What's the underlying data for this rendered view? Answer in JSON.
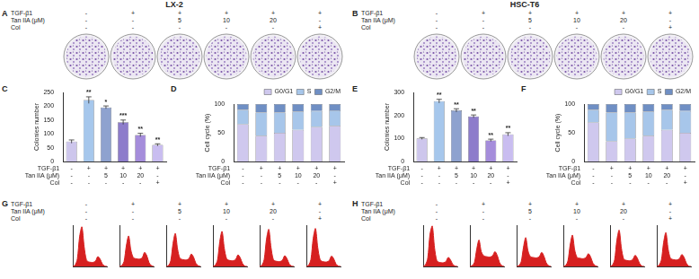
{
  "headers": [
    "LX-2",
    "HSC-T6"
  ],
  "image_panels": [
    "A",
    "B"
  ],
  "conditions": {
    "rows": [
      "TGF-β1",
      "Tan IIA (μM)",
      "Col"
    ],
    "columns": [
      [
        "-",
        "-",
        "-"
      ],
      [
        "+",
        "-",
        "-"
      ],
      [
        "+",
        "5",
        "-"
      ],
      [
        "+",
        "10",
        "-"
      ],
      [
        "+",
        "20",
        "-"
      ],
      [
        "+",
        "-",
        "+"
      ]
    ]
  },
  "chart_data": [
    {
      "panel": "C",
      "type": "bar",
      "y_label": "Colonies number",
      "values": [
        72,
        222,
        196,
        142,
        96,
        60
      ],
      "errors": [
        6,
        12,
        5,
        8,
        6,
        4
      ],
      "significance": [
        null,
        "**",
        "*",
        "***",
        "**",
        "**"
      ],
      "colors": [
        "#cdc6ec",
        "#a6c7ec",
        "#8ea2cf",
        "#8d7ccb",
        "#a58ddb",
        "#c9bdf0"
      ],
      "ylim": [
        0,
        250
      ],
      "yticks": [
        0,
        50,
        100,
        150,
        200,
        250
      ],
      "grid": false
    },
    {
      "panel": "D",
      "type": "bar",
      "stacked": true,
      "y_label": "Cell cycle (%)",
      "series": [
        {
          "name": "G0/G1",
          "color": "#cfc8ee",
          "values": [
            65,
            45,
            50,
            55,
            60,
            62
          ]
        },
        {
          "name": "S",
          "color": "#a7c6ea",
          "values": [
            25,
            40,
            35,
            32,
            28,
            27
          ]
        },
        {
          "name": "G2/M",
          "color": "#6f8fc4",
          "values": [
            10,
            15,
            15,
            13,
            12,
            11
          ]
        }
      ],
      "ylim": [
        0,
        100
      ],
      "yticks": [
        0,
        50,
        100
      ],
      "grid": false,
      "legend": "top"
    },
    {
      "panel": "E",
      "type": "bar",
      "y_label": "Colonies number",
      "values": [
        100,
        262,
        222,
        196,
        92,
        118
      ],
      "errors": [
        4,
        8,
        7,
        6,
        5,
        7
      ],
      "significance": [
        null,
        "**",
        "**",
        "**",
        "**",
        "**"
      ],
      "colors": [
        "#cdc6ec",
        "#a6c7ec",
        "#8ea2cf",
        "#8d7ccb",
        "#a58ddb",
        "#c9bdf0"
      ],
      "ylim": [
        0,
        300
      ],
      "yticks": [
        0,
        100,
        200,
        300
      ],
      "grid": false
    },
    {
      "panel": "F",
      "type": "bar",
      "stacked": true,
      "y_label": "Cell cycle (%)",
      "series": [
        {
          "name": "G0/G1",
          "color": "#cfc8ee",
          "values": [
            68,
            35,
            40,
            45,
            55,
            50
          ]
        },
        {
          "name": "S",
          "color": "#a7c6ea",
          "values": [
            22,
            50,
            45,
            42,
            35,
            38
          ]
        },
        {
          "name": "G2/M",
          "color": "#6f8fc4",
          "values": [
            10,
            15,
            15,
            13,
            10,
            12
          ]
        }
      ],
      "ylim": [
        0,
        100
      ],
      "yticks": [
        0,
        50,
        100
      ],
      "grid": false,
      "legend": "top"
    },
    {
      "panel": "G",
      "type": "line",
      "color": "#d62020",
      "tick_labels": false,
      "x": [
        1,
        2,
        3,
        4,
        5,
        6,
        7,
        8,
        9,
        10,
        11,
        12,
        13,
        14,
        15,
        16
      ],
      "xlim": [
        1,
        16
      ],
      "ylim": [
        0,
        100
      ],
      "series": [
        {
          "values": [
            0,
            3,
            18,
            72,
            96,
            48,
            16,
            11,
            10,
            10,
            13,
            24,
            18,
            6,
            1,
            0
          ]
        },
        {
          "values": [
            0,
            2,
            12,
            50,
            74,
            40,
            22,
            19,
            18,
            18,
            21,
            34,
            26,
            9,
            2,
            0
          ]
        },
        {
          "values": [
            0,
            2,
            14,
            56,
            80,
            42,
            20,
            17,
            16,
            16,
            19,
            30,
            23,
            8,
            2,
            0
          ]
        },
        {
          "values": [
            0,
            3,
            15,
            60,
            85,
            44,
            19,
            15,
            14,
            14,
            17,
            28,
            21,
            7,
            1,
            0
          ]
        },
        {
          "values": [
            0,
            3,
            17,
            66,
            90,
            46,
            17,
            13,
            12,
            12,
            15,
            26,
            19,
            6,
            1,
            0
          ]
        },
        {
          "values": [
            0,
            3,
            17,
            68,
            92,
            46,
            17,
            12,
            11,
            11,
            14,
            25,
            19,
            6,
            1,
            0
          ]
        }
      ]
    },
    {
      "panel": "H",
      "type": "line",
      "color": "#d62020",
      "tick_labels": false,
      "x": [
        1,
        2,
        3,
        4,
        5,
        6,
        7,
        8,
        9,
        10,
        11,
        12,
        13,
        14,
        15,
        16
      ],
      "xlim": [
        1,
        16
      ],
      "ylim": [
        0,
        100
      ],
      "series": [
        {
          "values": [
            0,
            4,
            20,
            78,
            98,
            45,
            14,
            10,
            9,
            9,
            12,
            22,
            16,
            5,
            1,
            0
          ]
        },
        {
          "values": [
            0,
            2,
            10,
            42,
            64,
            36,
            26,
            24,
            23,
            23,
            26,
            36,
            27,
            10,
            2,
            0
          ]
        },
        {
          "values": [
            0,
            2,
            11,
            46,
            70,
            38,
            24,
            22,
            21,
            21,
            24,
            34,
            25,
            9,
            2,
            0
          ]
        },
        {
          "values": [
            0,
            2,
            13,
            52,
            76,
            40,
            22,
            20,
            19,
            19,
            22,
            31,
            23,
            8,
            2,
            0
          ]
        },
        {
          "values": [
            0,
            3,
            16,
            64,
            88,
            44,
            18,
            15,
            14,
            14,
            17,
            27,
            20,
            7,
            1,
            0
          ]
        },
        {
          "values": [
            0,
            3,
            15,
            58,
            82,
            42,
            20,
            17,
            16,
            16,
            19,
            29,
            22,
            8,
            1,
            0
          ]
        }
      ]
    }
  ]
}
